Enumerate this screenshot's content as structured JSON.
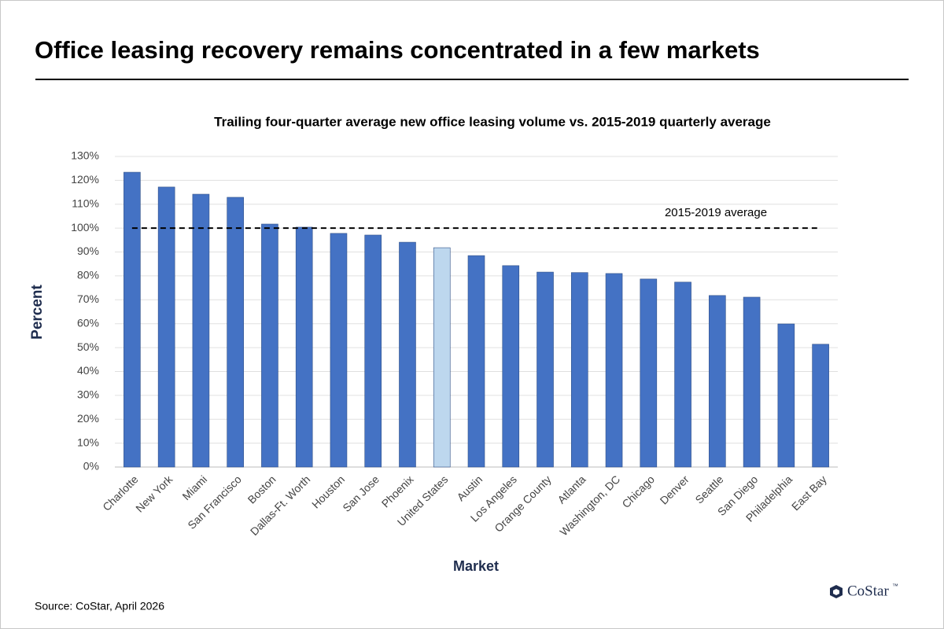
{
  "header": {
    "title": "Office leasing recovery remains concentrated in a few markets"
  },
  "chart_data": {
    "type": "bar",
    "title": "Trailing four-quarter average new office leasing volume vs. 2015-2019 quarterly average",
    "y_label": "Percent",
    "x_label": "Market",
    "categories": [
      "Charlotte",
      "New York",
      "Miami",
      "San Francisco",
      "Boston",
      "Dallas-Ft. Worth",
      "Houston",
      "San Jose",
      "Phoenix",
      "United States",
      "Austin",
      "Los Angeles",
      "Orange County",
      "Atlanta",
      "Washington, DC",
      "Chicago",
      "Denver",
      "Seattle",
      "San Diego",
      "Philadelphia",
      "East Bay"
    ],
    "values": [
      123.4,
      117.2,
      114.2,
      112.9,
      101.7,
      100.4,
      97.8,
      97.1,
      94.1,
      91.8,
      88.5,
      84.3,
      81.6,
      81.4,
      81,
      78.7,
      77.4,
      71.8,
      71.1,
      59.9,
      51.4
    ],
    "colors": [
      "#4472c4",
      "#4472c4",
      "#4472c4",
      "#4472c4",
      "#4472c4",
      "#4472c4",
      "#4472c4",
      "#4472c4",
      "#4472c4",
      "#bdd7ee",
      "#4472c4",
      "#4472c4",
      "#4472c4",
      "#4472c4",
      "#4472c4",
      "#4472c4",
      "#4472c4",
      "#4472c4",
      "#4472c4",
      "#4472c4",
      "#4472c4"
    ],
    "ylim": [
      0,
      130
    ],
    "yticks": [
      {
        "value": 0,
        "label": "0%"
      },
      {
        "value": 10,
        "label": "10%"
      },
      {
        "value": 20,
        "label": "20%"
      },
      {
        "value": 30,
        "label": "30%"
      },
      {
        "value": 40,
        "label": "40%"
      },
      {
        "value": 50,
        "label": "50%"
      },
      {
        "value": 60,
        "label": "60%"
      },
      {
        "value": 70,
        "label": "70%"
      },
      {
        "value": 80,
        "label": "80%"
      },
      {
        "value": 90,
        "label": "90%"
      },
      {
        "value": 100,
        "label": "100%"
      },
      {
        "value": 110,
        "label": "110%"
      },
      {
        "value": 120,
        "label": "120%"
      },
      {
        "value": 130,
        "label": "130%"
      }
    ],
    "grid": true,
    "reference_line": {
      "value": 100,
      "label": "2015-2019 average"
    }
  },
  "footer": {
    "source": "Source: CoStar, April 2026",
    "brand": "CoStar",
    "brand_mark": "™"
  }
}
